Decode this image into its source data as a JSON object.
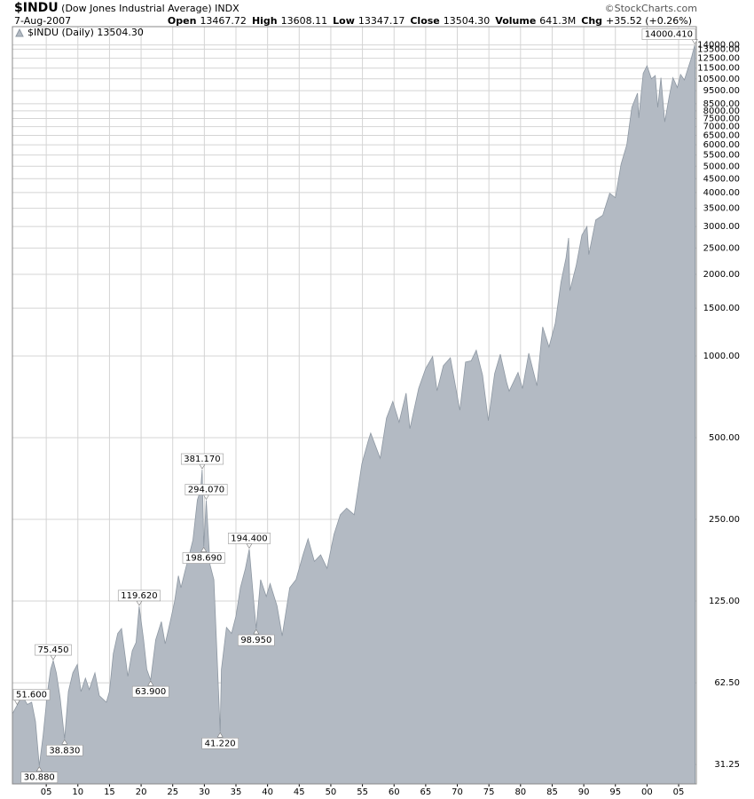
{
  "header": {
    "symbol": "$INDU",
    "name": "(Dow Jones Industrial Average)",
    "exchange": "INDX",
    "date": "7-Aug-2007",
    "copyright": "©StockCharts.com",
    "quote": [
      {
        "label": "Open",
        "value": "13467.72"
      },
      {
        "label": "High",
        "value": "13608.11"
      },
      {
        "label": "Low",
        "value": "13347.17"
      },
      {
        "label": "Close",
        "value": "13504.30"
      },
      {
        "label": "Volume",
        "value": "641.3M"
      },
      {
        "label": "Chg",
        "value": "+35.52 (+0.26%)"
      }
    ]
  },
  "chart_data": {
    "type": "area",
    "log_scale": true,
    "grid": true,
    "legend": "top-left",
    "xlim": [
      1899.65,
      2007.8
    ],
    "xticks": [
      {
        "value": 1905,
        "label": "05"
      },
      {
        "value": 1910,
        "label": "10"
      },
      {
        "value": 1915,
        "label": "15"
      },
      {
        "value": 1920,
        "label": "20"
      },
      {
        "value": 1925,
        "label": "25"
      },
      {
        "value": 1930,
        "label": "30"
      },
      {
        "value": 1935,
        "label": "35"
      },
      {
        "value": 1940,
        "label": "40"
      },
      {
        "value": 1945,
        "label": "45"
      },
      {
        "value": 1950,
        "label": "50"
      },
      {
        "value": 1955,
        "label": "55"
      },
      {
        "value": 1960,
        "label": "60"
      },
      {
        "value": 1965,
        "label": "65"
      },
      {
        "value": 1970,
        "label": "70"
      },
      {
        "value": 1975,
        "label": "75"
      },
      {
        "value": 1980,
        "label": "80"
      },
      {
        "value": 1985,
        "label": "85"
      },
      {
        "value": 1990,
        "label": "90"
      },
      {
        "value": 1995,
        "label": "95"
      },
      {
        "value": 2000,
        "label": "00"
      },
      {
        "value": 2005,
        "label": "05"
      }
    ],
    "ylim": [
      26.5,
      16350
    ],
    "yticks": [
      31.25,
      {
        "value": 62.5,
        "label": "62.50"
      },
      {
        "value": 125,
        "label": "125.00"
      },
      {
        "value": 250,
        "label": "250.00"
      },
      {
        "value": 500,
        "label": "500.00"
      },
      {
        "value": 1000,
        "label": "1000.00"
      },
      {
        "value": 1500,
        "label": "1500.00"
      },
      {
        "value": 2000,
        "label": "2000.00"
      },
      {
        "value": 2500,
        "label": "2500.00"
      },
      {
        "value": 3000,
        "label": "3000.00"
      },
      {
        "value": 3500,
        "label": "3500.00"
      },
      {
        "value": 4000,
        "label": "4000.00"
      },
      {
        "value": 4500,
        "label": "4500.00"
      },
      {
        "value": 5000,
        "label": "5000.00"
      },
      {
        "value": 5500,
        "label": "5500.00"
      },
      {
        "value": 6000,
        "label": "6000.00"
      },
      {
        "value": 6500,
        "label": "6500.00"
      },
      {
        "value": 7000,
        "label": "7000.00"
      },
      {
        "value": 7500,
        "label": "7500.00"
      },
      {
        "value": 8000,
        "label": "8000.00"
      },
      {
        "value": 8500,
        "label": "8500.00"
      },
      {
        "value": 9500,
        "label": "9500.00"
      },
      {
        "value": 10500,
        "label": "10500.00"
      },
      {
        "value": 11500,
        "label": "11500.00"
      },
      {
        "value": 12500,
        "label": "12500.00"
      },
      {
        "value": 13500,
        "label": "13500.00"
      },
      {
        "value": 14000,
        "label": "14000.00"
      }
    ],
    "series": [
      {
        "name": "$INDU (Daily) 13504.30",
        "color": "#b3bac3",
        "edge_color": "#8e98a3",
        "x": [
          1899.65,
          1900.4,
          1901.0,
          1901.4,
          1902.0,
          1902.7,
          1903.3,
          1903.9,
          1904.5,
          1905.2,
          1905.7,
          1906.1,
          1906.6,
          1907.2,
          1907.9,
          1908.5,
          1909.2,
          1909.9,
          1910.5,
          1911.2,
          1911.8,
          1912.7,
          1913.4,
          1914.5,
          1915.0,
          1915.6,
          1916.3,
          1916.9,
          1917.9,
          1918.6,
          1919.2,
          1919.7,
          1920.4,
          1920.9,
          1921.5,
          1922.3,
          1923.2,
          1923.8,
          1924.6,
          1925.3,
          1925.9,
          1926.3,
          1926.9,
          1927.6,
          1928.2,
          1928.9,
          1929.4,
          1929.66,
          1929.9,
          1930.3,
          1930.9,
          1931.5,
          1932.0,
          1932.5,
          1932.7,
          1933.5,
          1934.3,
          1935.0,
          1935.7,
          1936.5,
          1937.1,
          1937.8,
          1938.2,
          1938.9,
          1939.8,
          1940.4,
          1941.5,
          1942.3,
          1943.5,
          1944.5,
          1945.6,
          1946.4,
          1947.4,
          1948.4,
          1949.4,
          1950.5,
          1951.5,
          1952.5,
          1953.7,
          1954.9,
          1955.9,
          1956.3,
          1957.8,
          1958.8,
          1959.8,
          1960.8,
          1961.9,
          1962.5,
          1963.9,
          1965.0,
          1966.1,
          1966.8,
          1967.8,
          1968.9,
          1970.4,
          1971.3,
          1972.2,
          1973.0,
          1974.0,
          1974.9,
          1975.9,
          1976.8,
          1977.8,
          1978.2,
          1979.6,
          1980.3,
          1981.3,
          1982.6,
          1983.5,
          1984.5,
          1985.5,
          1986.4,
          1987.2,
          1987.6,
          1987.8,
          1988.8,
          1989.7,
          1990.5,
          1990.8,
          1991.9,
          1993.0,
          1994.1,
          1995.0,
          1995.9,
          1996.8,
          1997.6,
          1998.5,
          1998.7,
          1999.4,
          2000.0,
          2000.7,
          2001.3,
          2001.7,
          2002.2,
          2002.8,
          2003.5,
          2004.1,
          2004.8,
          2005.3,
          2005.9,
          2006.5,
          2007.0,
          2007.55,
          2007.6
        ],
        "values": [
          48,
          51.6,
          56,
          55,
          52,
          53,
          45,
          30.88,
          40,
          58,
          70,
          75.45,
          68,
          55,
          38.83,
          58,
          68,
          73,
          58,
          65,
          59,
          68,
          56,
          53,
          58,
          80,
          95,
          99,
          66,
          82,
          88,
          119.62,
          90,
          70,
          63.9,
          90,
          105,
          87,
          105,
          125,
          155,
          140,
          160,
          185,
          210,
          295,
          320,
          381.17,
          198.69,
          294.07,
          170,
          150,
          80,
          41.22,
          70,
          100,
          95,
          110,
          140,
          165,
          194.4,
          125,
          98.95,
          150,
          130,
          145,
          120,
          93,
          140,
          150,
          185,
          212,
          175,
          185,
          165,
          220,
          260,
          275,
          260,
          400,
          485,
          520,
          420,
          590,
          680,
          570,
          730,
          540,
          760,
          900,
          995,
          744,
          920,
          985,
          631,
          950,
          960,
          1051,
          850,
          578,
          860,
          1015,
          800,
          742,
          870,
          759,
          1024,
          777,
          1280,
          1080,
          1320,
          1870,
          2300,
          2722,
          1740,
          2150,
          2790,
          2999,
          2365,
          3170,
          3300,
          3978,
          3830,
          5100,
          6000,
          8250,
          9300,
          7540,
          11000,
          11722,
          10500,
          10800,
          8236,
          10600,
          7286,
          9000,
          10600,
          9750,
          10900,
          10400,
          11500,
          12500,
          14000.41,
          13504.3
        ]
      }
    ],
    "annotations": {
      "x": [
        1900.4,
        1906.1,
        1903.9,
        1907.9,
        1919.7,
        1921.5,
        1929.66,
        1930.3,
        1929.9,
        1932.5,
        1937.1,
        1938.2,
        2007.55
      ],
      "values": [
        51.6,
        75.45,
        30.88,
        38.83,
        119.62,
        63.9,
        381.17,
        294.07,
        198.69,
        41.22,
        194.4,
        98.95,
        14000.41
      ],
      "value_labels": [
        "51.600",
        "75.450",
        "30.880",
        "38.830",
        "119.620",
        "63.900",
        "381.170",
        "294.070",
        "198.690",
        "41.220",
        "194.400",
        "98.950",
        "14000.410"
      ]
    }
  }
}
